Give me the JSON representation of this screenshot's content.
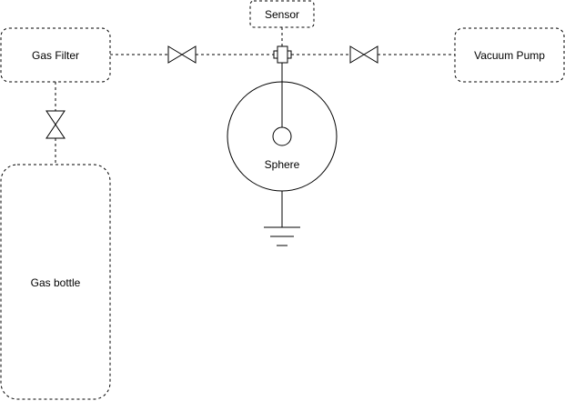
{
  "diagram": {
    "nodes": {
      "gas_filter": {
        "label": "Gas Filter"
      },
      "sensor": {
        "label": "Sensor"
      },
      "vacuum_pump": {
        "label": "Vacuum Pump"
      },
      "sphere": {
        "label": "Sphere"
      },
      "gas_bottle": {
        "label": "Gas bottle"
      }
    },
    "colors": {
      "stroke": "#000000",
      "background": "#ffffff"
    }
  }
}
